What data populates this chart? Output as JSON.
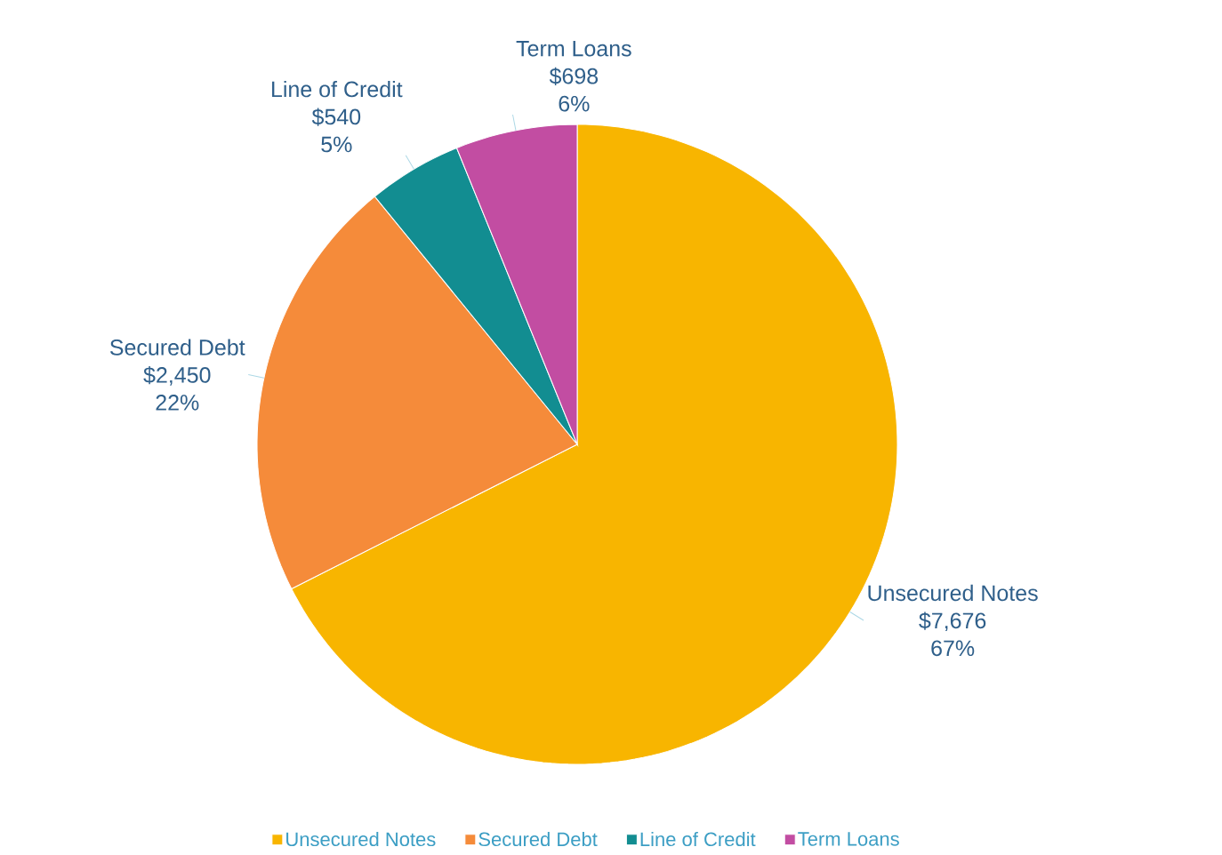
{
  "chart_data": {
    "type": "pie",
    "categories": [
      "Unsecured Notes",
      "Secured Debt",
      "Line of Credit",
      "Term Loans"
    ],
    "values": [
      7676,
      2450,
      540,
      698
    ],
    "colors": [
      "#f8b500",
      "#f58b3a",
      "#128d91",
      "#c24da2"
    ],
    "value_labels": [
      "$7,676",
      "$2,450",
      "$540",
      "$698"
    ],
    "annotations": [
      "67%",
      "22%",
      "5%",
      "6%"
    ],
    "legend": "bottom"
  }
}
